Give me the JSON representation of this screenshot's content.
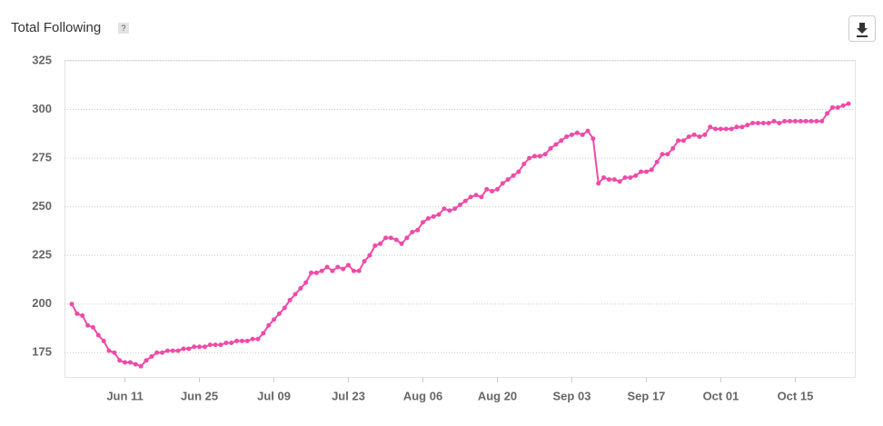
{
  "help_icon": "?",
  "chart_data": {
    "type": "line",
    "title": "Total Following",
    "categories": [
      null,
      null,
      null,
      null,
      null,
      null,
      null,
      null,
      null,
      null,
      "Jun 11",
      null,
      null,
      null,
      null,
      null,
      null,
      null,
      null,
      null,
      null,
      null,
      null,
      null,
      "Jun 25",
      null,
      null,
      null,
      null,
      null,
      null,
      null,
      null,
      null,
      null,
      null,
      null,
      null,
      "Jul 09",
      null,
      null,
      null,
      null,
      null,
      null,
      null,
      null,
      null,
      null,
      null,
      null,
      null,
      "Jul 23",
      null,
      null,
      null,
      null,
      null,
      null,
      null,
      null,
      null,
      null,
      null,
      null,
      null,
      "Aug 06",
      null,
      null,
      null,
      null,
      null,
      null,
      null,
      null,
      null,
      null,
      null,
      null,
      null,
      "Aug 20",
      null,
      null,
      null,
      null,
      null,
      null,
      null,
      null,
      null,
      null,
      null,
      null,
      null,
      "Sep 03",
      null,
      null,
      null,
      null,
      null,
      null,
      null,
      null,
      null,
      null,
      null,
      null,
      null,
      "Sep 17",
      null,
      null,
      null,
      null,
      null,
      null,
      null,
      null,
      null,
      null,
      null,
      null,
      null,
      "Oct 01",
      null,
      null,
      null,
      null,
      null,
      null,
      null,
      null,
      null,
      null,
      null,
      null,
      null,
      "Oct 15",
      null,
      null,
      null,
      null,
      null,
      null,
      null,
      null,
      null,
      null
    ],
    "series": [
      {
        "name": "Total Following",
        "color": "#f04aa8",
        "values": [
          200,
          195,
          194,
          189,
          188,
          184,
          181,
          176,
          175,
          171,
          170,
          170,
          169,
          168,
          171,
          173,
          175,
          175,
          176,
          176,
          176,
          177,
          177,
          178,
          178,
          178,
          179,
          179,
          179,
          180,
          180,
          181,
          181,
          181,
          182,
          182,
          185,
          189,
          192,
          195,
          198,
          202,
          205,
          208,
          211,
          216,
          216,
          217,
          219,
          217,
          219,
          218,
          220,
          217,
          217,
          222,
          225,
          230,
          231,
          234,
          234,
          233,
          231,
          234,
          237,
          238,
          242,
          244,
          245,
          246,
          249,
          248,
          249,
          251,
          253,
          255,
          256,
          255,
          259,
          258,
          259,
          262,
          264,
          266,
          268,
          272,
          275,
          276,
          276,
          277,
          280,
          282,
          284,
          286,
          287,
          288,
          287,
          289,
          285,
          262,
          265,
          264,
          264,
          263,
          265,
          265,
          266,
          268,
          268,
          269,
          273,
          277,
          277,
          280,
          284,
          284,
          286,
          287,
          286,
          287,
          291,
          290,
          290,
          290,
          290,
          291,
          291,
          292,
          293,
          293,
          293,
          293,
          294,
          293,
          294,
          294,
          294,
          294,
          294,
          294,
          294,
          294,
          298,
          301,
          301,
          302,
          303
        ]
      }
    ],
    "ylim": [
      162.5,
      325
    ],
    "yticks": [
      175,
      200,
      225,
      250,
      275,
      300,
      325
    ],
    "grid": true
  }
}
